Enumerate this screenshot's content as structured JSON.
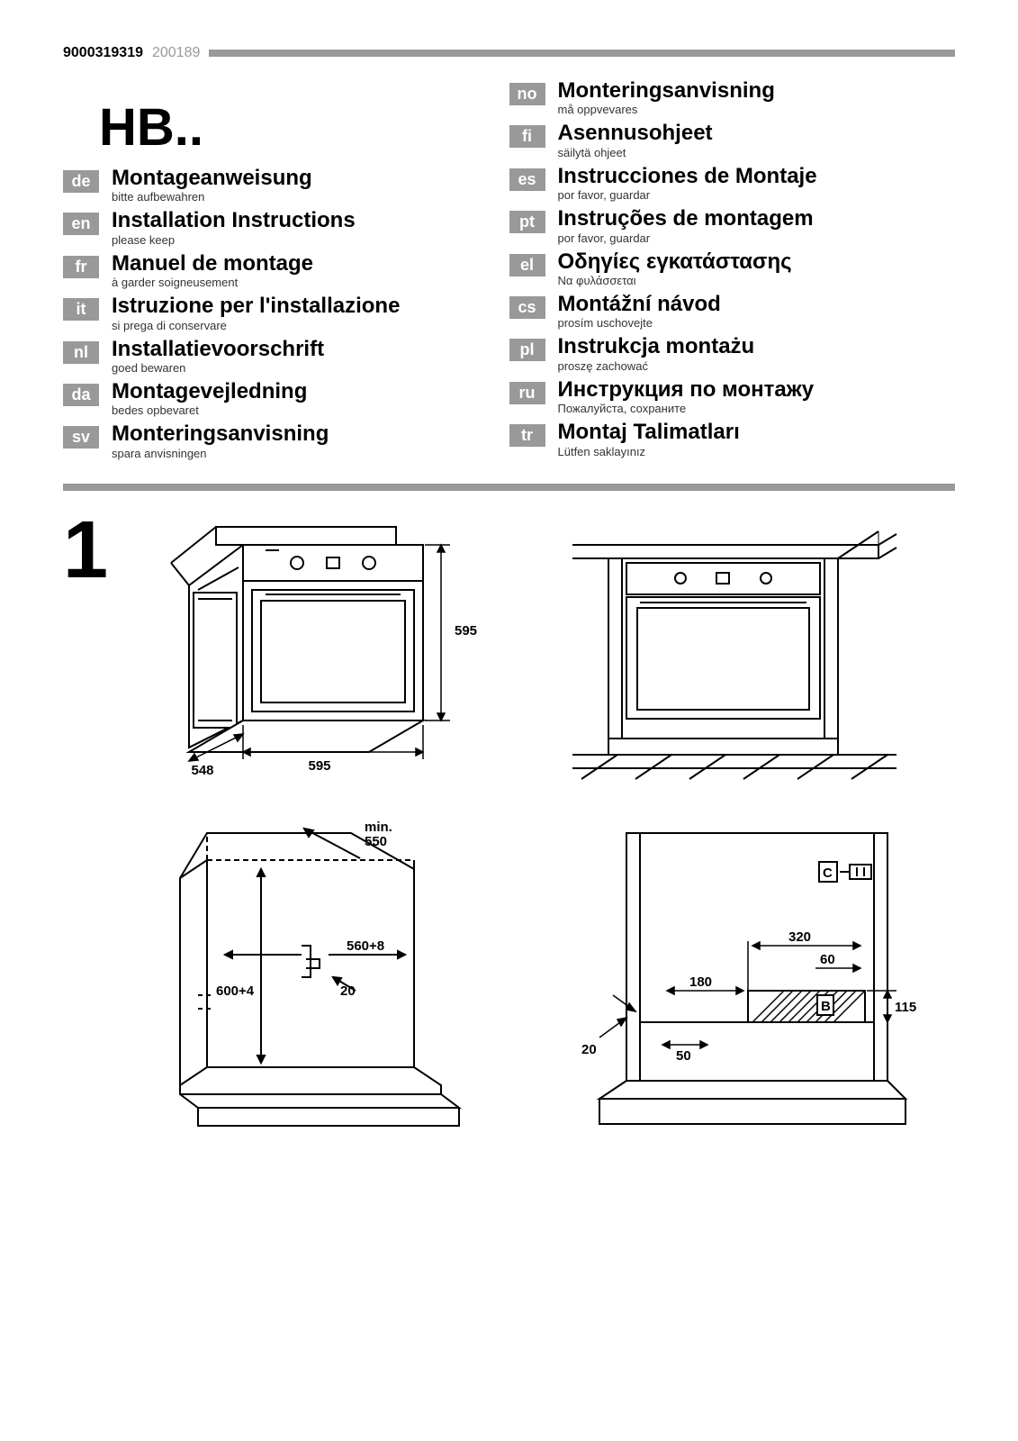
{
  "header": {
    "doc_id_bold": "9000319319",
    "doc_id_light": "200189"
  },
  "model": "HB..",
  "languages_left": [
    {
      "code": "de",
      "title": "Montageanweisung",
      "sub": "bitte aufbewahren"
    },
    {
      "code": "en",
      "title": "Installation Instructions",
      "sub": "please keep"
    },
    {
      "code": "fr",
      "title": "Manuel de montage",
      "sub": "à garder soigneusement"
    },
    {
      "code": "it",
      "title": "Istruzione per l'installazione",
      "sub": "si prega di conservare"
    },
    {
      "code": "nl",
      "title": "Installatievoorschrift",
      "sub": "goed bewaren"
    },
    {
      "code": "da",
      "title": "Montagevejledning",
      "sub": "bedes opbevaret"
    },
    {
      "code": "sv",
      "title": "Monteringsanvisning",
      "sub": "spara anvisningen"
    }
  ],
  "languages_right": [
    {
      "code": "no",
      "title": "Monteringsanvisning",
      "sub": "må oppvevares"
    },
    {
      "code": "fi",
      "title": "Asennusohjeet",
      "sub": "säilytä ohjeet"
    },
    {
      "code": "es",
      "title": "Instrucciones de Montaje",
      "sub": "por favor, guardar"
    },
    {
      "code": "pt",
      "title": "Instruções de montagem",
      "sub": "por favor, guardar"
    },
    {
      "code": "el",
      "title": "Οδηγίες εγκατάστασης",
      "sub": "Να φυλάσσεται"
    },
    {
      "code": "cs",
      "title": "Montážní návod",
      "sub": "prosím uschovejte"
    },
    {
      "code": "pl",
      "title": "Instrukcja montażu",
      "sub": "proszę zachować"
    },
    {
      "code": "ru",
      "title": "Инструкция по монтажу",
      "sub": "Пожалуйста, сохраните"
    },
    {
      "code": "tr",
      "title": "Montaj Talimatları",
      "sub": "Lütfen saklayınız"
    }
  ],
  "step": "1",
  "diagram1": {
    "dim_height": "595",
    "dim_width": "595",
    "dim_depth": "548"
  },
  "diagram3": {
    "min_label": "min.",
    "min_depth": "550",
    "cutout_width": "560+8",
    "cutout_height": "600+4",
    "gap": "20"
  },
  "diagram4": {
    "tag_c": "C",
    "d320": "320",
    "d60": "60",
    "d180": "180",
    "tag_b": "B",
    "d115": "115",
    "d50": "50",
    "d20": "20"
  },
  "colors": {
    "grey": "#999999",
    "black": "#000000",
    "white": "#ffffff"
  }
}
